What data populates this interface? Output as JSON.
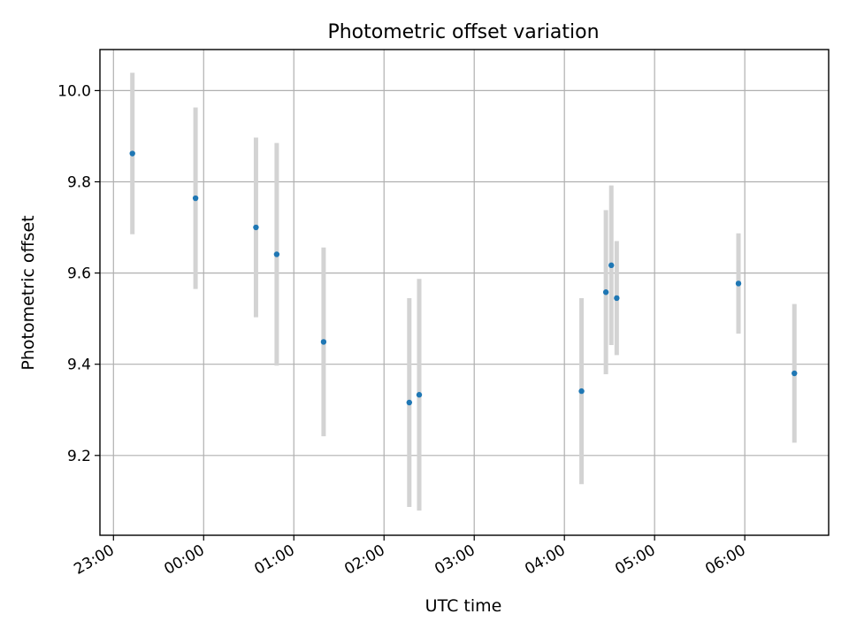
{
  "chart_data": {
    "type": "scatter",
    "title": "Photometric offset variation",
    "xlabel": "UTC time",
    "ylabel": "Photometric offset",
    "x_tick_labels": [
      "23:00",
      "00:00",
      "01:00",
      "02:00",
      "03:00",
      "04:00",
      "05:00",
      "06:00"
    ],
    "x_tick_values_hours": [
      23,
      24,
      25,
      26,
      27,
      28,
      29,
      30
    ],
    "y_ticks": [
      9.2,
      9.4,
      9.6,
      9.8,
      10.0
    ],
    "y_tick_labels": [
      "9.2",
      "9.4",
      "9.6",
      "9.8",
      "10.0"
    ],
    "xlim_hours": [
      22.85,
      30.93
    ],
    "ylim": [
      9.025,
      10.09
    ],
    "grid": true,
    "marker_color": "#1f77b4",
    "errorbar_color": "#d3d3d3",
    "points": [
      {
        "t": "23:13",
        "x_hours": 23.21,
        "y": 9.862,
        "err": 0.177
      },
      {
        "t": "23:54",
        "x_hours": 23.91,
        "y": 9.764,
        "err": 0.199
      },
      {
        "t": "00:35",
        "x_hours": 24.58,
        "y": 9.7,
        "err": 0.197
      },
      {
        "t": "00:49",
        "x_hours": 24.81,
        "y": 9.641,
        "err": 0.244
      },
      {
        "t": "01:20",
        "x_hours": 25.33,
        "y": 9.449,
        "err": 0.207
      },
      {
        "t": "02:17",
        "x_hours": 26.28,
        "y": 9.316,
        "err": 0.229
      },
      {
        "t": "02:23",
        "x_hours": 26.39,
        "y": 9.333,
        "err": 0.254
      },
      {
        "t": "04:12",
        "x_hours": 28.19,
        "y": 9.341,
        "err": 0.204
      },
      {
        "t": "04:27",
        "x_hours": 28.46,
        "y": 9.558,
        "err": 0.18
      },
      {
        "t": "04:31",
        "x_hours": 28.52,
        "y": 9.617,
        "err": 0.175
      },
      {
        "t": "04:35",
        "x_hours": 28.58,
        "y": 9.545,
        "err": 0.125
      },
      {
        "t": "05:56",
        "x_hours": 29.93,
        "y": 9.577,
        "err": 0.11
      },
      {
        "t": "06:33",
        "x_hours": 30.55,
        "y": 9.38,
        "err": 0.152
      }
    ]
  }
}
